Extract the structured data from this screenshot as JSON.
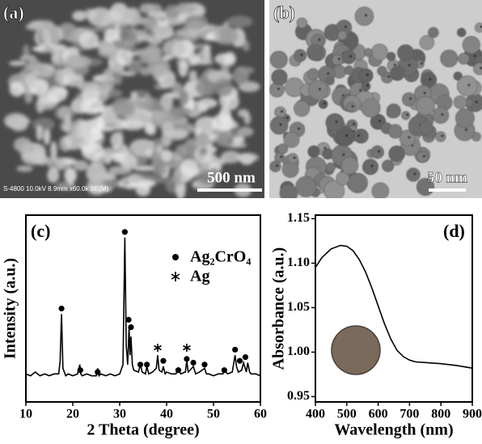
{
  "images": [
    {
      "label": "(a)",
      "scale_bar": "500 nm",
      "caption": "S-4800 10.0kV 8.9mm x60.0k SE(M)"
    },
    {
      "label": "(b)",
      "scale_bar": "50 nm"
    }
  ],
  "chart_data": [
    {
      "type": "line",
      "label": "(c)",
      "x_label": "2 Theta (degree)",
      "y_label": "Intensity (a.u.)",
      "color": "#000000",
      "x": [
        10,
        11,
        12,
        13,
        14,
        15,
        16,
        17,
        17.3,
        17.6,
        17.9,
        18.5,
        19,
        20,
        21,
        21.5,
        21.7,
        22,
        23,
        24,
        25,
        25.3,
        25.6,
        26,
        27,
        28,
        29,
        30,
        30.7,
        31.1,
        31.4,
        31.7,
        32.0,
        32.2,
        32.4,
        32.7,
        33,
        34,
        34.4,
        34.8,
        35.5,
        35.8,
        36.2,
        37,
        37.8,
        38.1,
        38.4,
        39,
        39.3,
        39.7,
        40,
        41,
        42,
        42.5,
        43,
        44,
        44.3,
        44.6,
        45,
        45.7,
        46.2,
        47,
        48.1,
        48.5,
        49,
        50,
        51,
        52,
        52.3,
        53,
        54,
        54.6,
        54.9,
        55.3,
        56,
        56.4,
        57,
        57.3,
        57.7,
        58,
        59,
        60
      ],
      "values": [
        15,
        14,
        16,
        14,
        15,
        14,
        15,
        15,
        22,
        47,
        18,
        14,
        15,
        14,
        15,
        20,
        15,
        14,
        15,
        14,
        14,
        18,
        14,
        15,
        14,
        15,
        14,
        15,
        20,
        88,
        30,
        20,
        40,
        25,
        35,
        20,
        17,
        16,
        20,
        16,
        15,
        19,
        15,
        16,
        18,
        25,
        17,
        16,
        19,
        15,
        16,
        15,
        15,
        18,
        15,
        16,
        22,
        16,
        17,
        19,
        15,
        16,
        18,
        15,
        15,
        14,
        15,
        15,
        17,
        15,
        16,
        25,
        19,
        16,
        17,
        21,
        16,
        21,
        16,
        15,
        15,
        14
      ],
      "markers": [
        {
          "name": "Ag₂CrO₄",
          "marker": "circle",
          "color": "#000000",
          "x": [
            17.6,
            21.6,
            25.3,
            31.1,
            31.9,
            32.4,
            34.4,
            35.8,
            39.3,
            42.5,
            44.3,
            45.7,
            48.1,
            52.3,
            54.6,
            55.6,
            56.8
          ],
          "values": [
            50,
            17,
            16,
            91,
            44,
            40,
            20,
            20,
            22,
            17,
            23,
            21,
            20,
            17,
            28,
            22,
            24
          ]
        },
        {
          "name": "Ag",
          "marker": "asterisk",
          "color": "#000000",
          "x": [
            38.1,
            44.3
          ],
          "values": [
            29,
            29
          ]
        }
      ],
      "xlim": [
        10,
        60
      ],
      "ylim": [
        0,
        100
      ],
      "xticks": [
        10,
        20,
        30,
        40,
        50,
        60
      ]
    },
    {
      "type": "line",
      "label": "(d)",
      "x_label": "Wavelength (nm)",
      "y_label": "Absorbance (a.u.)",
      "color": "#000000",
      "x": [
        400,
        420,
        450,
        480,
        500,
        520,
        540,
        560,
        580,
        600,
        620,
        640,
        660,
        680,
        700,
        720,
        760,
        800,
        850,
        900
      ],
      "values": [
        1.095,
        1.106,
        1.116,
        1.12,
        1.119,
        1.114,
        1.104,
        1.09,
        1.072,
        1.052,
        1.032,
        1.015,
        1.002,
        0.995,
        0.991,
        0.989,
        0.988,
        0.987,
        0.985,
        0.982
      ],
      "xlim": [
        400,
        900
      ],
      "ylim": [
        0.944,
        1.154
      ],
      "xticks": [
        400,
        500,
        600,
        700,
        800,
        900
      ],
      "yticks": [
        0.95,
        {
          "value": 1,
          "label": "1.00"
        },
        1.05,
        {
          "value": 1.1,
          "label": "1.10"
        },
        1.15
      ]
    }
  ]
}
